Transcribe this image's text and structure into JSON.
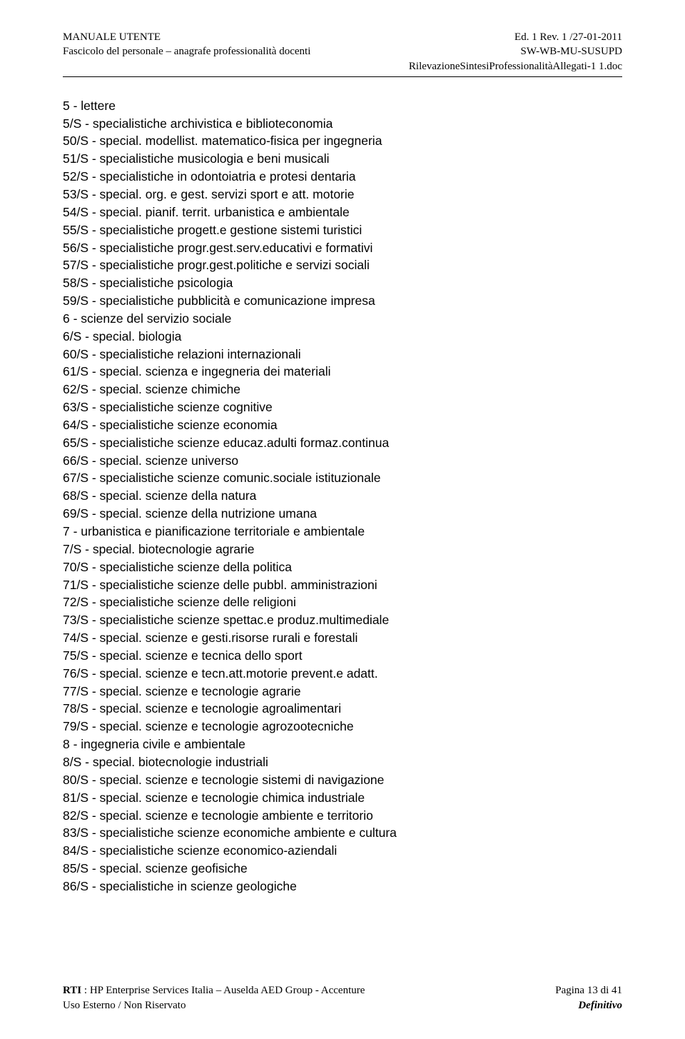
{
  "header": {
    "left_line1": "MANUALE UTENTE",
    "left_line2": "Fascicolo del personale – anagrafe professionalità docenti",
    "right_line1": "Ed. 1 Rev. 1 /27-01-2011",
    "right_line2": "SW-WB-MU-SUSUPD",
    "right_line3": "RilevazioneSintesiProfessionalitàAllegati-1 1.doc"
  },
  "lines": [
    "5 - lettere",
    "5/S - specialistiche archivistica e biblioteconomia",
    "50/S - special. modellist. matematico-fisica per ingegneria",
    "51/S - specialistiche musicologia e beni musicali",
    "52/S - specialistiche in odontoiatria e protesi dentaria",
    "53/S - special. org. e gest. servizi sport e att. motorie",
    "54/S - special. pianif. territ. urbanistica e ambientale",
    "55/S - specialistiche progett.e gestione sistemi turistici",
    "56/S - specialistiche progr.gest.serv.educativi e formativi",
    "57/S - specialistiche progr.gest.politiche e servizi sociali",
    "58/S - specialistiche psicologia",
    "59/S - specialistiche pubblicità e comunicazione impresa",
    "6 - scienze del servizio sociale",
    "6/S - special. biologia",
    "60/S - specialistiche relazioni internazionali",
    "61/S - special. scienza e ingegneria dei materiali",
    "62/S - special. scienze chimiche",
    "63/S - specialistiche scienze cognitive",
    "64/S - specialistiche scienze economia",
    "65/S - specialistiche scienze educaz.adulti formaz.continua",
    "66/S - special. scienze universo",
    "67/S - specialistiche scienze comunic.sociale istituzionale",
    "68/S - special. scienze della natura",
    "69/S - special. scienze della nutrizione umana",
    "7 - urbanistica e pianificazione territoriale e ambientale",
    "7/S - special. biotecnologie agrarie",
    "70/S - specialistiche scienze della politica",
    "71/S - specialistiche scienze delle pubbl. amministrazioni",
    "72/S - specialistiche scienze delle religioni",
    "73/S - specialistiche scienze spettac.e produz.multimediale",
    "74/S - special. scienze e gesti.risorse rurali e forestali",
    "75/S - special. scienze e tecnica dello sport",
    "76/S - special. scienze e tecn.att.motorie prevent.e adatt.",
    "77/S - special. scienze e tecnologie agrarie",
    "78/S - special. scienze e tecnologie agroalimentari",
    "79/S - special. scienze e tecnologie agrozootecniche",
    "8 - ingegneria civile e ambientale",
    "8/S - special. biotecnologie industriali",
    "80/S - special. scienze e tecnologie sistemi di navigazione",
    "81/S - special. scienze e tecnologie chimica industriale",
    "82/S - special. scienze e tecnologie ambiente e territorio",
    "83/S - specialistiche scienze economiche ambiente e cultura",
    "84/S - specialistiche scienze economico-aziendali",
    "85/S - special. scienze geofisiche",
    "86/S - specialistiche in scienze geologiche"
  ],
  "footer": {
    "rti_label": "RTI",
    "rti_text": " : HP Enterprise Services Italia – Auselda AED Group - Accenture",
    "page_label": "Pagina 13  di 41",
    "use_text": "Uso Esterno / Non Riservato",
    "definitivo": "Definitivo"
  }
}
